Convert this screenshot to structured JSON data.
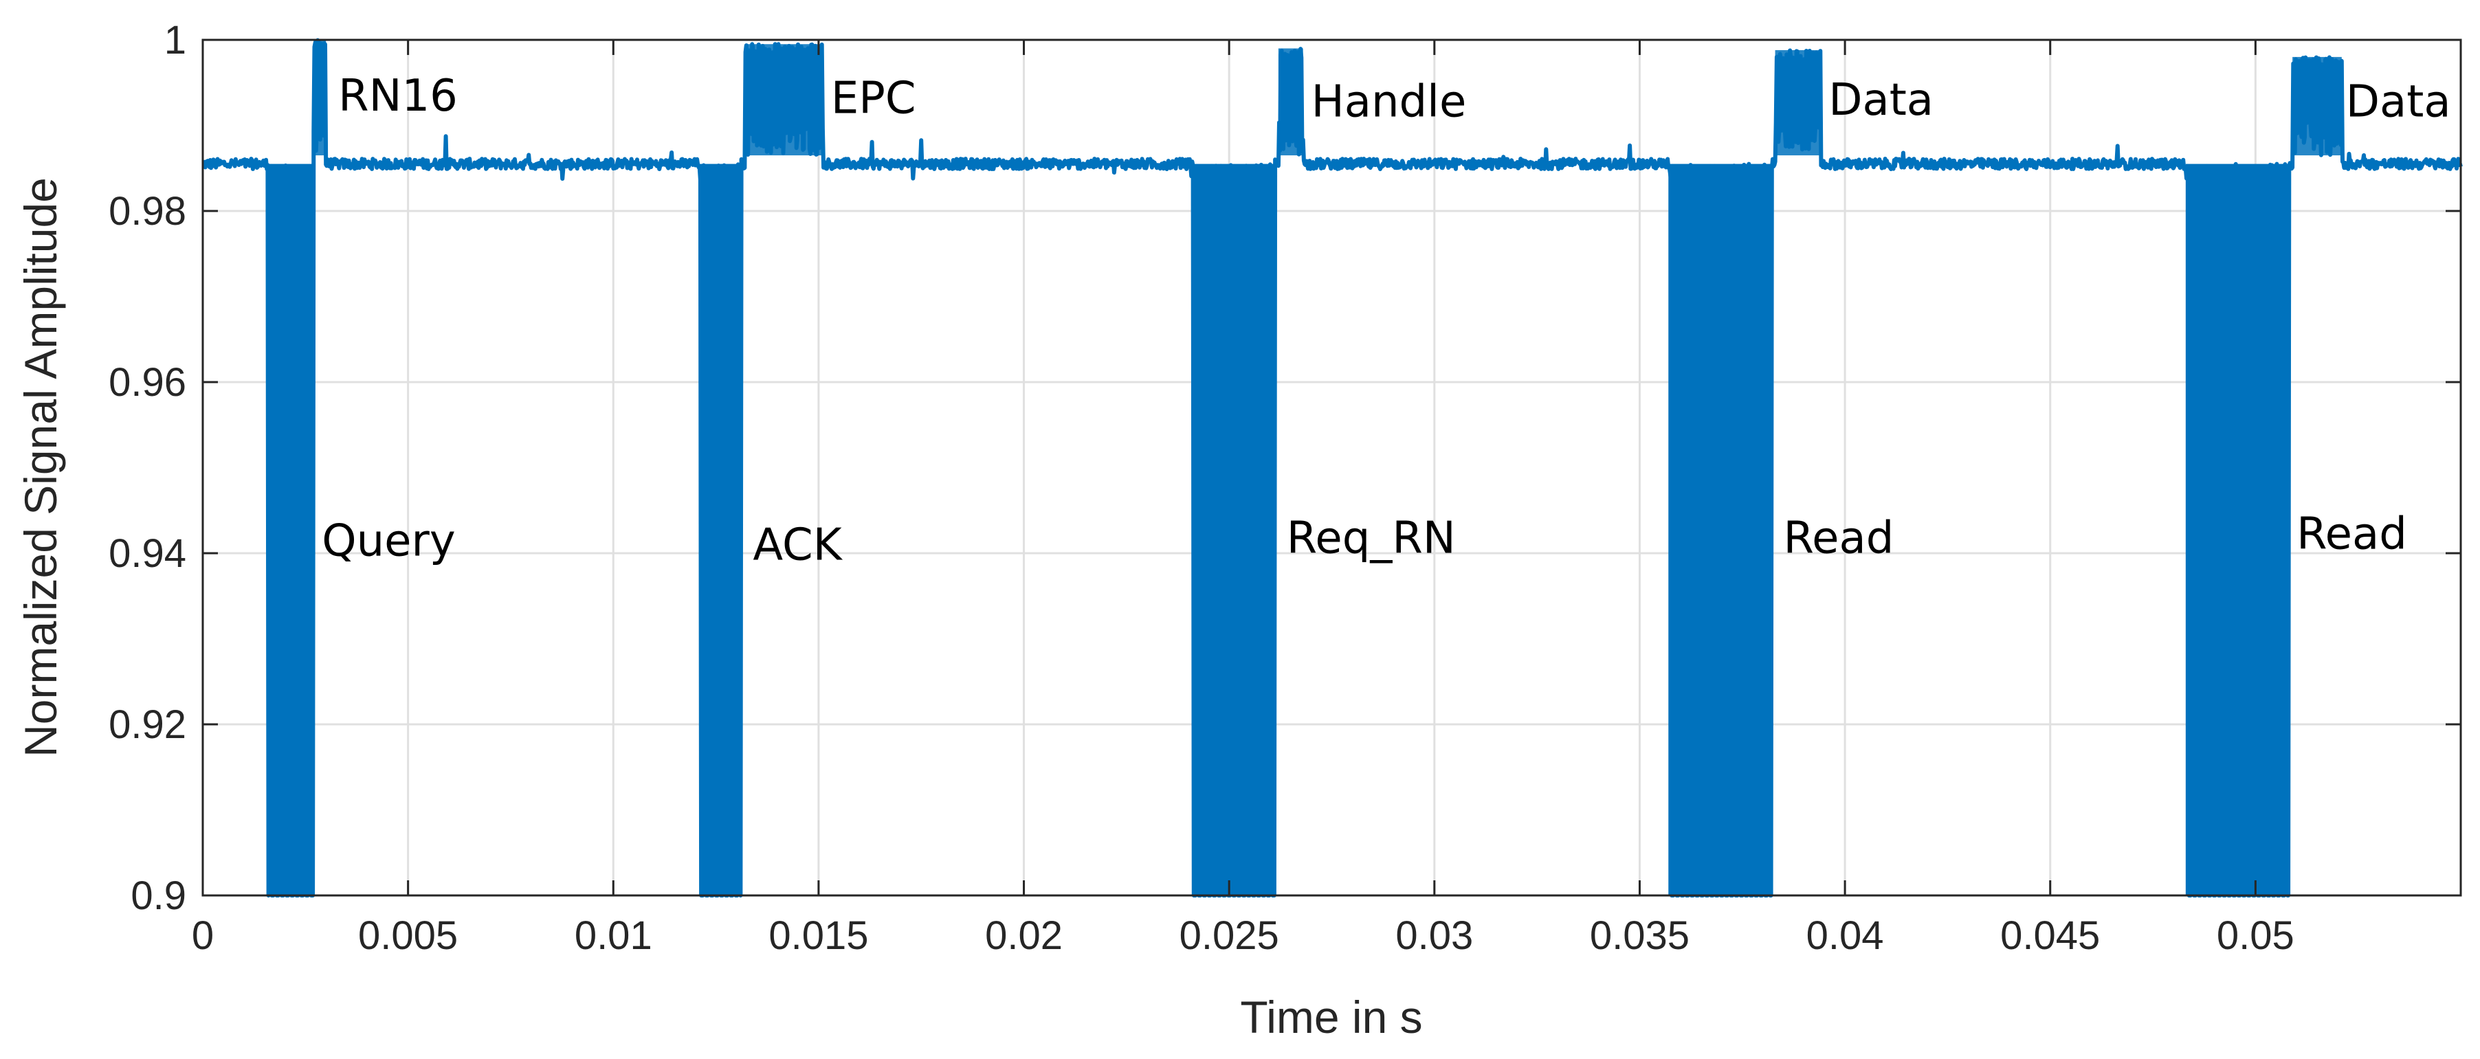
{
  "chart_data": {
    "type": "line",
    "title": "",
    "xlabel": "Time in s",
    "ylabel": "Normalized Signal Amplitude",
    "xlim": [
      0,
      0.055
    ],
    "ylim": [
      0.9,
      1.0
    ],
    "grid": true,
    "x_ticks": [
      0,
      0.005,
      0.01,
      0.015,
      0.02,
      0.025,
      0.03,
      0.035,
      0.04,
      0.045,
      0.05
    ],
    "x_tick_labels": [
      "0",
      "0.005",
      "0.01",
      "0.015",
      "0.02",
      "0.025",
      "0.03",
      "0.035",
      "0.04",
      "0.045",
      "0.05"
    ],
    "y_ticks": [
      0.9,
      0.92,
      0.94,
      0.96,
      0.98,
      1.0
    ],
    "y_tick_labels": [
      "0.9",
      "0.92",
      "0.94",
      "0.96",
      "0.98",
      "1"
    ],
    "colors": {
      "line": "#0072BD",
      "grid": "#e0e0e0",
      "axis": "#262626"
    },
    "series": [
      {
        "baseline": 0.9855,
        "reader_commands": [
          {
            "label": "Query",
            "start": 0.0016,
            "end": 0.0027,
            "low": 0.9
          },
          {
            "label": "ACK",
            "start": 0.0121,
            "end": 0.0131,
            "low": 0.9
          },
          {
            "label": "Req_RN",
            "start": 0.0241,
            "end": 0.0261,
            "low": 0.9
          },
          {
            "label": "Read",
            "start": 0.0357,
            "end": 0.0382,
            "low": 0.9
          },
          {
            "label": "Read",
            "start": 0.0483,
            "end": 0.0508,
            "low": 0.9
          }
        ],
        "tag_responses": [
          {
            "label": "RN16",
            "start": 0.0027,
            "end": 0.003,
            "high": 1.0
          },
          {
            "label": "EPC",
            "start": 0.0132,
            "end": 0.0151,
            "high": 0.9995
          },
          {
            "label": "Handle",
            "start": 0.0262,
            "end": 0.0268,
            "high": 0.999
          },
          {
            "label": "Data",
            "start": 0.0383,
            "end": 0.0394,
            "high": 0.9988
          },
          {
            "label": "Data",
            "start": 0.0509,
            "end": 0.0521,
            "high": 0.998
          }
        ]
      }
    ],
    "annotations": [
      {
        "text": "Query",
        "x": 0.0029,
        "y": 0.9415
      },
      {
        "text": "RN16",
        "x": 0.0033,
        "y": 0.9935
      },
      {
        "text": "ACK",
        "x": 0.0134,
        "y": 0.941
      },
      {
        "text": "EPC",
        "x": 0.0153,
        "y": 0.9932
      },
      {
        "text": "Req_RN",
        "x": 0.0264,
        "y": 0.9418
      },
      {
        "text": "Handle",
        "x": 0.027,
        "y": 0.9928
      },
      {
        "text": "Read",
        "x": 0.0385,
        "y": 0.9418
      },
      {
        "text": "Data",
        "x": 0.0396,
        "y": 0.993
      },
      {
        "text": "Read",
        "x": 0.051,
        "y": 0.9423
      },
      {
        "text": "Data",
        "x": 0.0522,
        "y": 0.9928
      }
    ]
  }
}
